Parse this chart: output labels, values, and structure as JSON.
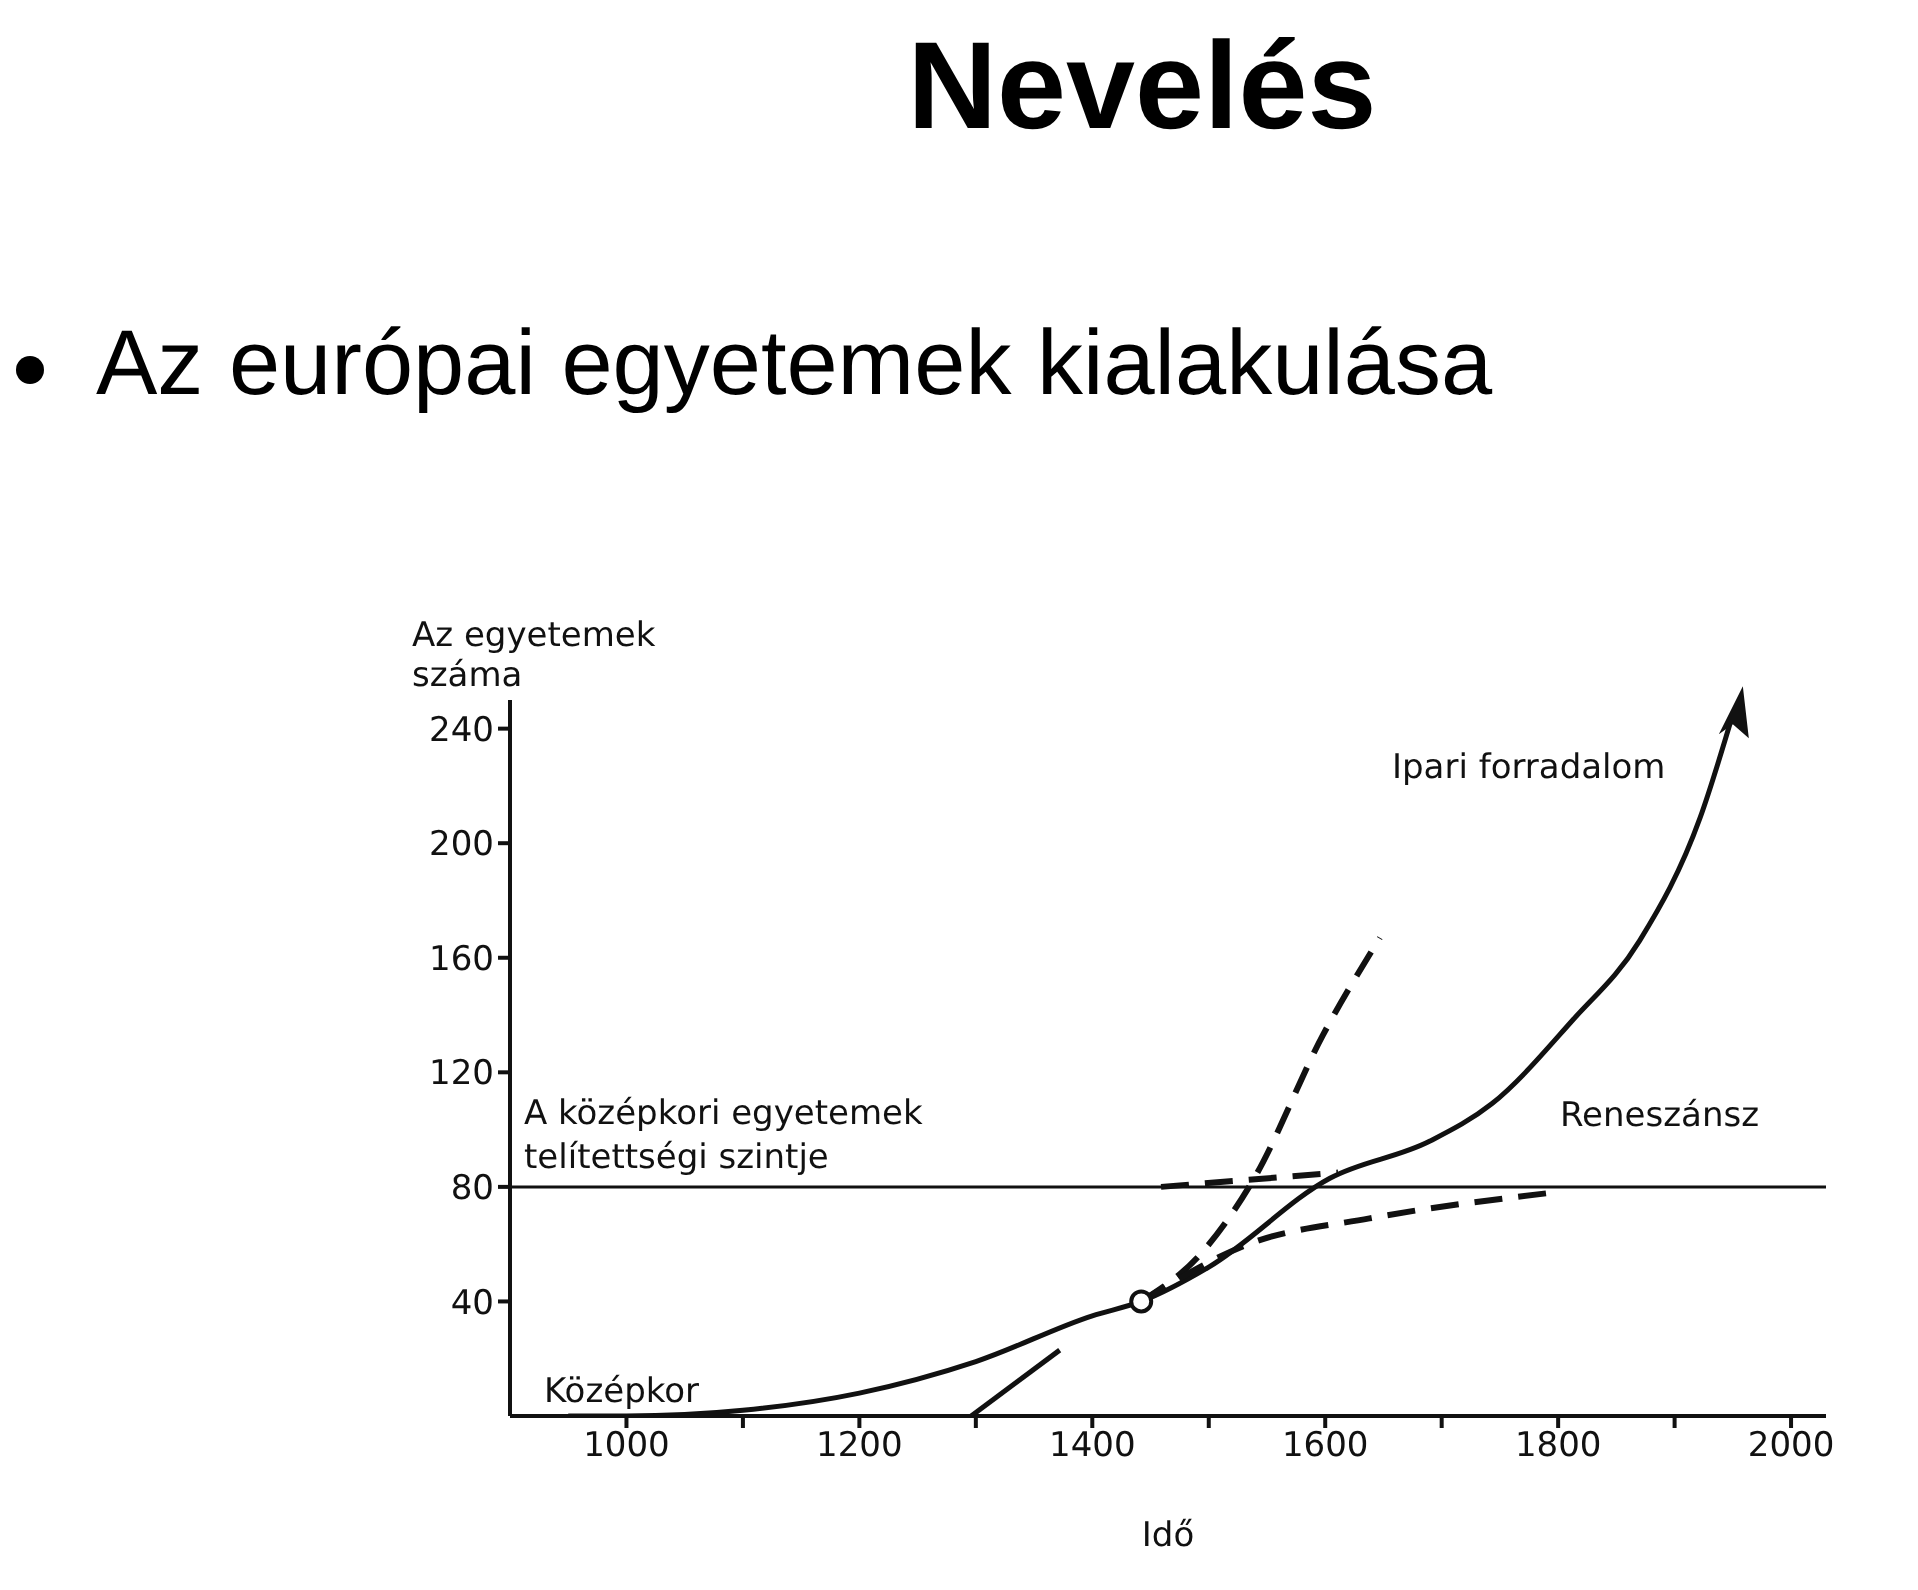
{
  "chart_data": {
    "type": "line",
    "title": "Nevelés",
    "subtitle": "Az európai egyetemek kialakulása",
    "xlabel": "Idő",
    "ylabel": "Az egyetemek száma",
    "xlim": [
      900,
      2030
    ],
    "ylim": [
      0,
      250
    ],
    "xticks": [
      1000,
      {
        "value": 1100,
        "label": null
      },
      1200,
      {
        "value": 1300,
        "label": null
      },
      1400,
      {
        "value": 1500,
        "label": null
      },
      1600,
      {
        "value": 1700,
        "label": null
      },
      1800,
      {
        "value": 1900,
        "label": null
      },
      2000
    ],
    "yticks": [
      40,
      80,
      120,
      160,
      200,
      240
    ],
    "series": [
      {
        "color": "#111111",
        "line_style": "solid",
        "x": [
          950,
          1000,
          1100,
          1200,
          1300,
          1400,
          1442,
          1500,
          1604,
          1690,
          1743,
          1812,
          1870,
          1922,
          1950
        ],
        "values": [
          0,
          0,
          2,
          8,
          19,
          35,
          40,
          52,
          83,
          96,
          109,
          138,
          166,
          209,
          245
        ]
      },
      {
        "color": "#111111",
        "line_style": "dashed",
        "x": [
          1442,
          1494,
          1539,
          1598,
          1647
        ],
        "values": [
          40,
          57,
          83,
          133,
          167
        ]
      },
      {
        "color": "#111111",
        "line_style": "dashed",
        "x": [
          1459,
          1611
        ],
        "values": [
          80,
          85
        ]
      },
      {
        "color": "#111111",
        "line_style": "dashed",
        "x": [
          1442,
          1534,
          1638,
          1795
        ],
        "values": [
          40,
          60,
          69,
          78
        ]
      },
      {
        "color": "#111111",
        "line_style": "solid",
        "x": [
          1296,
          1372
        ],
        "values": [
          0,
          23
        ]
      },
      {
        "type": "scatter",
        "color": "#111111",
        "marker": "circle",
        "x": [
          1442
        ],
        "values": [
          40
        ]
      }
    ],
    "ref_lines": [
      {
        "axis": "y",
        "value": 80,
        "label": "A középkori egyetemek telítettségi szintje",
        "color": "#111111"
      }
    ],
    "annotations": [
      "Középkor",
      "Reneszánsz",
      "Ipari forradalom"
    ]
  }
}
